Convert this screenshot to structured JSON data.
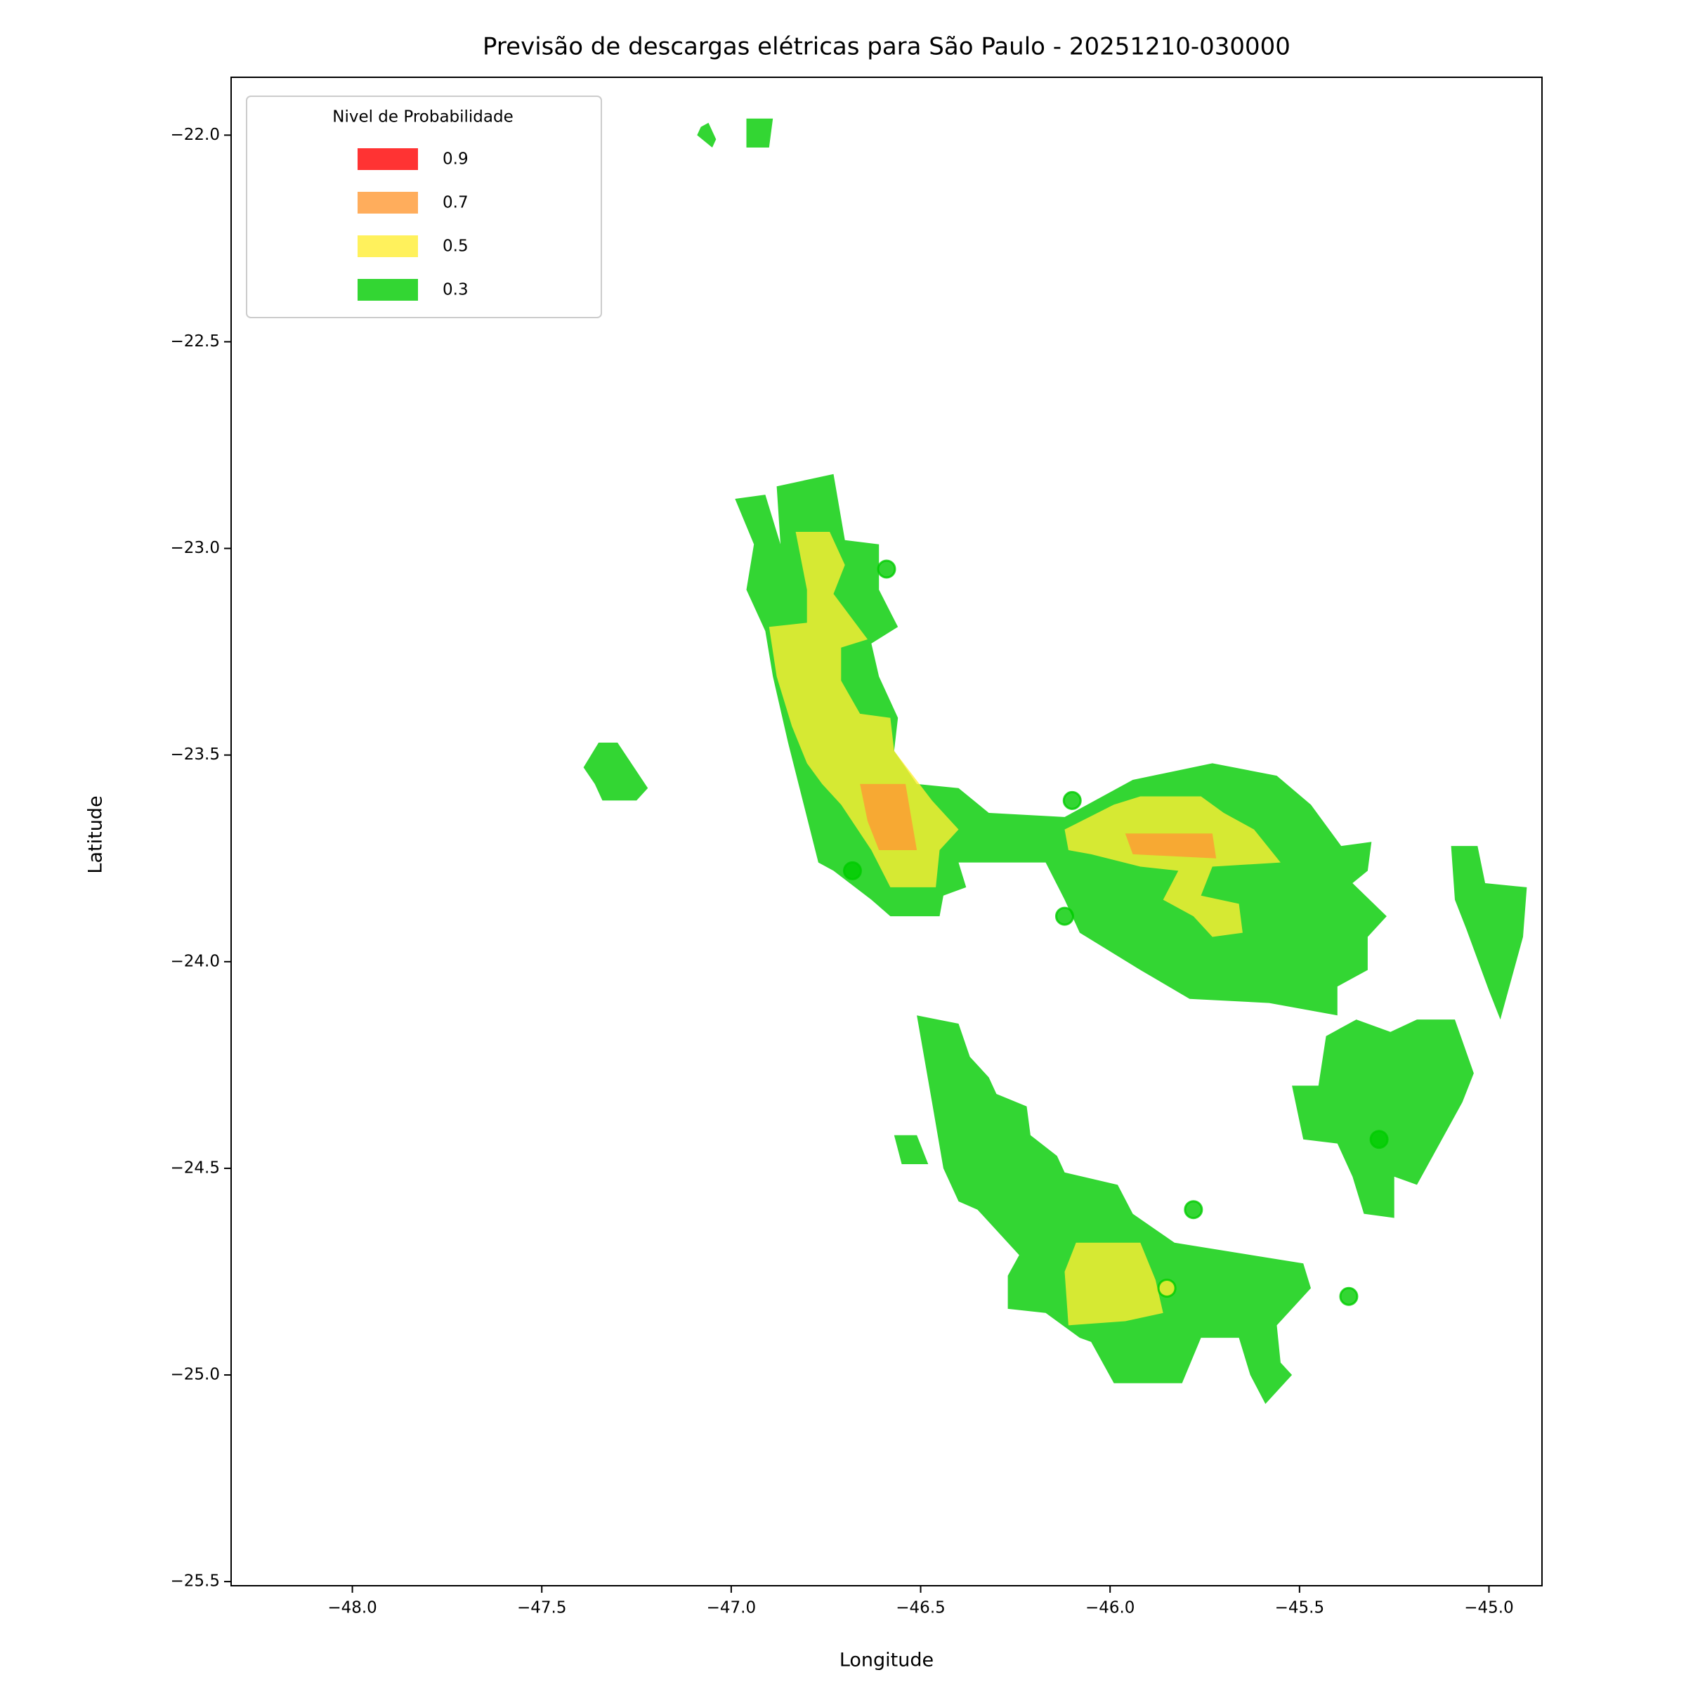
{
  "chart_data": {
    "type": "contour",
    "title": "Previsão de descargas elétricas para São Paulo - 20251210-030000",
    "x_label": "Longitude",
    "y_label": "Latitude",
    "xlim": [
      -48.32,
      -44.86
    ],
    "ylim": [
      -25.51,
      -21.86
    ],
    "xticks": [
      {
        "value": -48,
        "label": "−48.0"
      },
      {
        "value": -47.5,
        "label": "−47.5"
      },
      {
        "value": -47,
        "label": "−47.0"
      },
      {
        "value": -46.5,
        "label": "−46.5"
      },
      {
        "value": -46,
        "label": "−46.0"
      },
      {
        "value": -45.5,
        "label": "−45.5"
      },
      {
        "value": -45,
        "label": "−45.0"
      }
    ],
    "yticks": [
      {
        "value": -22,
        "label": "−22.0"
      },
      {
        "value": -22.5,
        "label": "−22.5"
      },
      {
        "value": -23,
        "label": "−23.0"
      },
      {
        "value": -23.5,
        "label": "−23.5"
      },
      {
        "value": -24,
        "label": "−24.0"
      },
      {
        "value": -24.5,
        "label": "−24.5"
      },
      {
        "value": -25,
        "label": "−25.0"
      },
      {
        "value": -25.5,
        "label": "−25.5"
      }
    ],
    "alpha": 0.8,
    "legend": {
      "title": "Nivel de Probabilidade",
      "position": "upper left"
    },
    "levels": [
      {
        "value": 0.9,
        "color": "#ff0000"
      },
      {
        "value": 0.7,
        "color": "#ff9933"
      },
      {
        "value": 0.5,
        "color": "#ffee33"
      },
      {
        "value": 0.3,
        "color": "#00cc00"
      }
    ],
    "regions": [
      {
        "value": 0.3,
        "lon": [
          -46.99,
          -46.91,
          -46.87,
          -46.88,
          -46.73,
          -46.7,
          -46.61,
          -46.61,
          -46.56,
          -46.63,
          -46.61,
          -46.56,
          -46.57,
          -46.51,
          -46.4,
          -46.32,
          -46.12,
          -45.94,
          -45.73,
          -45.56,
          -45.47,
          -45.39,
          -45.31,
          -45.32,
          -45.36,
          -45.27,
          -45.32,
          -45.32,
          -45.4,
          -45.4,
          -45.58,
          -45.79,
          -45.92,
          -46.08,
          -46.12,
          -46.17,
          -46.4,
          -46.38,
          -46.44,
          -46.45,
          -46.58,
          -46.63,
          -46.73,
          -46.77,
          -46.85,
          -46.89,
          -46.91,
          -46.96,
          -46.94
        ],
        "lat": [
          -22.88,
          -22.87,
          -22.99,
          -22.85,
          -22.82,
          -22.98,
          -22.99,
          -23.1,
          -23.19,
          -23.23,
          -23.31,
          -23.41,
          -23.49,
          -23.57,
          -23.58,
          -23.64,
          -23.65,
          -23.56,
          -23.52,
          -23.55,
          -23.62,
          -23.72,
          -23.71,
          -23.78,
          -23.81,
          -23.89,
          -23.94,
          -24.02,
          -24.06,
          -24.13,
          -24.1,
          -24.09,
          -24.02,
          -23.93,
          -23.85,
          -23.76,
          -23.76,
          -23.82,
          -23.84,
          -23.89,
          -23.89,
          -23.85,
          -23.78,
          -23.76,
          -23.47,
          -23.31,
          -23.2,
          -23.1,
          -22.99
        ]
      },
      {
        "value": 0.3,
        "lon": [
          -46.51,
          -46.4,
          -46.37,
          -46.32,
          -46.3,
          -46.22,
          -46.21,
          -46.14,
          -46.12,
          -45.98,
          -45.94,
          -45.83,
          -45.49,
          -45.47,
          -45.52,
          -45.56,
          -45.55,
          -45.52,
          -45.59,
          -45.63,
          -45.66,
          -45.76,
          -45.81,
          -45.99,
          -46.05,
          -46.08,
          -46.17,
          -46.27,
          -46.27,
          -46.24,
          -46.35,
          -46.4,
          -46.44,
          -46.47
        ],
        "lat": [
          -24.13,
          -24.15,
          -24.23,
          -24.28,
          -24.32,
          -24.35,
          -24.42,
          -24.47,
          -24.51,
          -24.54,
          -24.61,
          -24.68,
          -24.73,
          -24.79,
          -24.84,
          -24.88,
          -24.97,
          -25.0,
          -25.07,
          -25.0,
          -24.91,
          -24.91,
          -25.02,
          -25.02,
          -24.92,
          -24.91,
          -24.85,
          -24.84,
          -24.76,
          -24.71,
          -24.6,
          -24.58,
          -24.5,
          -24.34
        ]
      },
      {
        "value": 0.3,
        "lon": [
          -45.43,
          -45.35,
          -45.26,
          -45.19,
          -45.09,
          -45.04,
          -45.07,
          -45.19,
          -45.25,
          -45.25,
          -45.33,
          -45.36,
          -45.4,
          -45.49,
          -45.52,
          -45.45
        ],
        "lat": [
          -24.18,
          -24.14,
          -24.17,
          -24.14,
          -24.14,
          -24.27,
          -24.34,
          -24.54,
          -24.52,
          -24.62,
          -24.61,
          -24.52,
          -24.44,
          -24.43,
          -24.3,
          -24.3
        ]
      },
      {
        "value": 0.3,
        "lon": [
          -45.1,
          -45.03,
          -45.01,
          -44.9,
          -44.91,
          -44.97,
          -45.0,
          -45.06,
          -45.09
        ],
        "lat": [
          -23.72,
          -23.72,
          -23.81,
          -23.82,
          -23.94,
          -24.14,
          -24.07,
          -23.92,
          -23.85
        ]
      },
      {
        "value": 0.3,
        "lon": [
          -47.39,
          -47.35,
          -47.3,
          -47.22,
          -47.25,
          -47.34,
          -47.36
        ],
        "lat": [
          -23.53,
          -23.47,
          -23.47,
          -23.58,
          -23.61,
          -23.61,
          -23.57
        ]
      },
      {
        "value": 0.3,
        "lon": [
          -47.08,
          -47.06,
          -47.04,
          -47.05,
          -47.09
        ],
        "lat": [
          -21.98,
          -21.97,
          -22.01,
          -22.03,
          -22.0
        ]
      },
      {
        "value": 0.3,
        "lon": [
          -46.96,
          -46.89,
          -46.9,
          -46.96
        ],
        "lat": [
          -21.96,
          -21.96,
          -22.03,
          -22.03
        ]
      },
      {
        "value": 0.3,
        "lon": [
          -46.57,
          -46.51,
          -46.48,
          -46.55
        ],
        "lat": [
          -24.42,
          -24.42,
          -24.49,
          -24.49
        ]
      },
      {
        "value": 0.5,
        "lon": [
          -46.83,
          -46.74,
          -46.7,
          -46.73,
          -46.64,
          -46.71,
          -46.71,
          -46.66,
          -46.58,
          -46.57,
          -46.47,
          -46.4,
          -46.45,
          -46.46,
          -46.58,
          -46.63,
          -46.71,
          -46.76,
          -46.8,
          -46.84,
          -46.88,
          -46.9,
          -46.8,
          -46.8
        ],
        "lat": [
          -22.96,
          -22.96,
          -23.04,
          -23.11,
          -23.22,
          -23.24,
          -23.32,
          -23.4,
          -23.41,
          -23.49,
          -23.61,
          -23.68,
          -23.73,
          -23.82,
          -23.82,
          -23.73,
          -23.62,
          -23.57,
          -23.52,
          -23.43,
          -23.31,
          -23.19,
          -23.18,
          -23.1
        ]
      },
      {
        "value": 0.5,
        "lon": [
          -46.12,
          -45.99,
          -45.92,
          -45.76,
          -45.7,
          -45.62,
          -45.55,
          -45.73,
          -45.76,
          -45.66,
          -45.65,
          -45.73,
          -45.78,
          -45.86,
          -45.82,
          -45.92,
          -46.05,
          -46.11
        ],
        "lat": [
          -23.68,
          -23.62,
          -23.6,
          -23.6,
          -23.64,
          -23.68,
          -23.76,
          -23.77,
          -23.84,
          -23.86,
          -23.93,
          -23.94,
          -23.89,
          -23.85,
          -23.78,
          -23.77,
          -23.74,
          -23.73
        ]
      },
      {
        "value": 0.5,
        "lon": [
          -46.09,
          -45.92,
          -45.88,
          -45.86,
          -45.96,
          -46.11,
          -46.12
        ],
        "lat": [
          -24.68,
          -24.68,
          -24.77,
          -24.85,
          -24.87,
          -24.88,
          -24.75
        ]
      },
      {
        "value": 0.7,
        "lon": [
          -46.66,
          -46.54,
          -46.51,
          -46.61,
          -46.64
        ],
        "lat": [
          -23.57,
          -23.57,
          -23.73,
          -23.73,
          -23.66
        ]
      },
      {
        "value": 0.7,
        "lon": [
          -45.96,
          -45.73,
          -45.72,
          -45.94
        ],
        "lat": [
          -23.69,
          -23.69,
          -23.75,
          -23.74
        ]
      }
    ],
    "points": {
      "lon": [
        -46.59,
        -46.1,
        -46.68,
        -46.12,
        -45.78,
        -45.29,
        -45.37,
        -45.85
      ],
      "lat": [
        -23.05,
        -23.61,
        -23.78,
        -23.89,
        -24.6,
        -24.43,
        -24.81,
        -24.79
      ],
      "values": [
        0.3,
        0.3,
        0.3,
        0.3,
        0.3,
        0.3,
        0.3,
        0.5
      ]
    }
  }
}
